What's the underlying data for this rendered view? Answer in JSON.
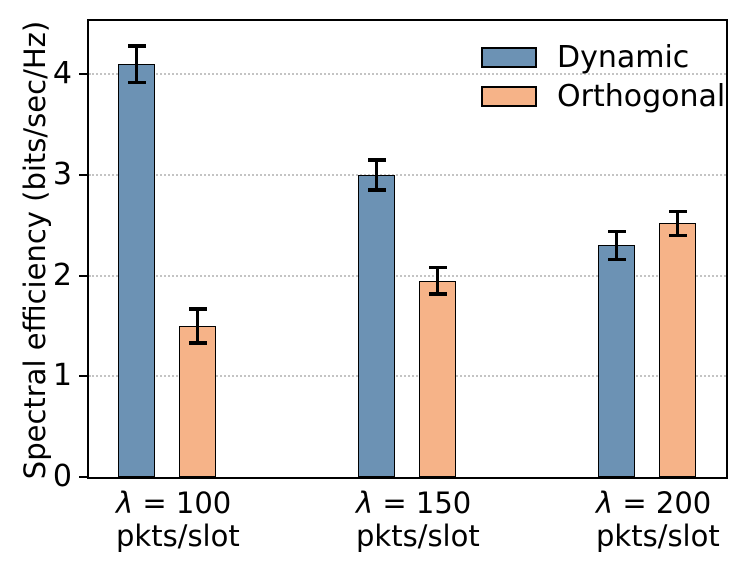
{
  "figure": {
    "background": "#ffffff",
    "text_color": "#000000"
  },
  "chart_data": {
    "type": "bar",
    "title": "",
    "xlabel": "",
    "ylabel": "Spectral efficiency (bits/sec/Hz)",
    "categories": [
      "λ = 100\npkts/slot",
      "λ = 150\npkts/slot",
      "λ = 200\npkts/slot"
    ],
    "series": [
      {
        "name": "Dynamic",
        "color": "#6C92B4",
        "values": [
          4.1,
          3.0,
          2.3
        ],
        "errors": [
          0.18,
          0.15,
          0.14
        ]
      },
      {
        "name": "Orthogonal",
        "color": "#F6B388",
        "values": [
          1.5,
          1.95,
          2.52
        ],
        "errors": [
          0.17,
          0.13,
          0.12
        ]
      }
    ],
    "yticks": [
      0,
      1,
      2,
      3,
      4
    ],
    "ylim": [
      0,
      4.53
    ],
    "grid": "horizontal-dotted",
    "grid_color": "#c4c4c4",
    "bar_edge_color": "#000000",
    "error_bar_color": "#000000",
    "legend_position": "upper right",
    "legend_frame": false,
    "error_bars": true
  }
}
